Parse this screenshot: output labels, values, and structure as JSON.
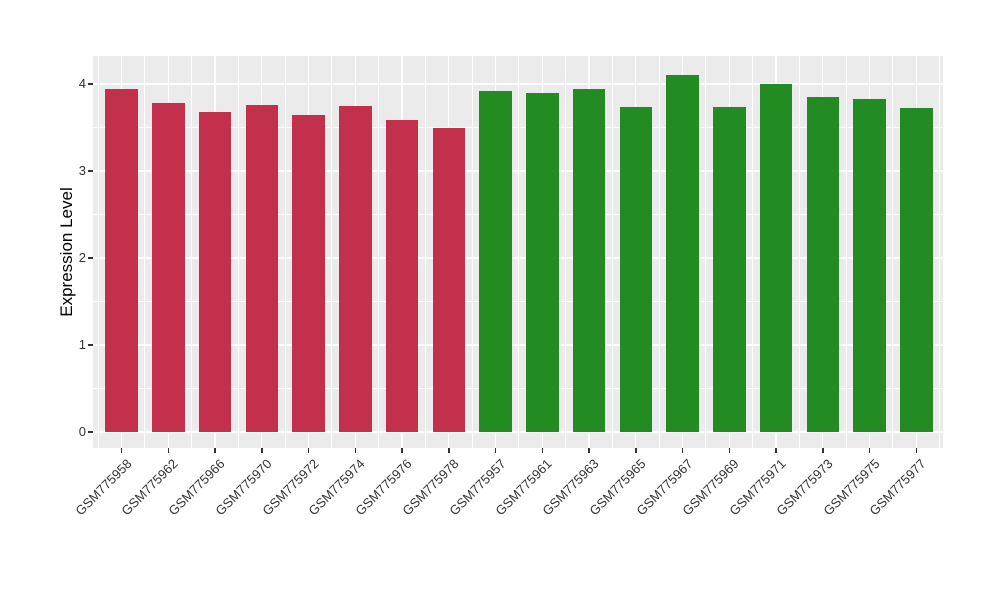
{
  "chart_data": {
    "type": "bar",
    "title": "",
    "xlabel": "",
    "ylabel": "Expression Level",
    "ylim": [
      0,
      4.32
    ],
    "yticks": [
      0,
      1,
      2,
      3,
      4
    ],
    "minor_yticks": [
      0.5,
      1.5,
      2.5,
      3.5
    ],
    "grid": "on",
    "legend_position": "none",
    "panel_background": "#ebebeb",
    "grid_color": "#ffffff",
    "tick_color": "#333333",
    "group_colors": {
      "left_group": "#c3304c",
      "right_group": "#228b22"
    },
    "bars": [
      {
        "label": "GSM775958",
        "value": 3.94,
        "color": "#c3304c"
      },
      {
        "label": "GSM775962",
        "value": 3.78,
        "color": "#c3304c"
      },
      {
        "label": "GSM775966",
        "value": 3.68,
        "color": "#c3304c"
      },
      {
        "label": "GSM775970",
        "value": 3.76,
        "color": "#c3304c"
      },
      {
        "label": "GSM775972",
        "value": 3.64,
        "color": "#c3304c"
      },
      {
        "label": "GSM775974",
        "value": 3.75,
        "color": "#c3304c"
      },
      {
        "label": "GSM775976",
        "value": 3.59,
        "color": "#c3304c"
      },
      {
        "label": "GSM775978",
        "value": 3.49,
        "color": "#c3304c"
      },
      {
        "label": "GSM775957",
        "value": 3.92,
        "color": "#228b22"
      },
      {
        "label": "GSM775961",
        "value": 3.9,
        "color": "#228b22"
      },
      {
        "label": "GSM775963",
        "value": 3.94,
        "color": "#228b22"
      },
      {
        "label": "GSM775965",
        "value": 3.74,
        "color": "#228b22"
      },
      {
        "label": "GSM775967",
        "value": 4.1,
        "color": "#228b22"
      },
      {
        "label": "GSM775969",
        "value": 3.74,
        "color": "#228b22"
      },
      {
        "label": "GSM775971",
        "value": 4.0,
        "color": "#228b22"
      },
      {
        "label": "GSM775973",
        "value": 3.85,
        "color": "#228b22"
      },
      {
        "label": "GSM775975",
        "value": 3.83,
        "color": "#228b22"
      },
      {
        "label": "GSM775977",
        "value": 3.72,
        "color": "#228b22"
      }
    ]
  }
}
